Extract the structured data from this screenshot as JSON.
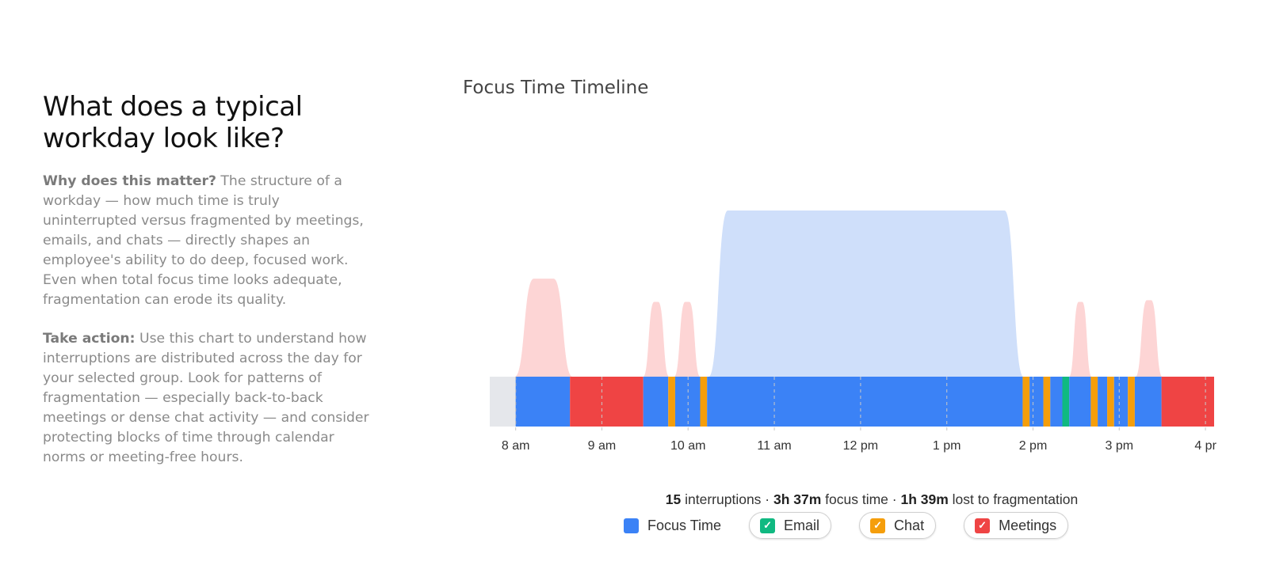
{
  "intro": {
    "heading": "What does a typical workday look like?",
    "why_label": "Why does this matter?",
    "why_text": " The structure of a workday — how much time is truly uninterrupted versus fragmented by meetings, emails, and chats — directly shapes an employee's ability to do deep, focused work. Even when total focus time looks adequate, fragmentation can erode its quality.",
    "action_label": "Take action:",
    "action_text": " Use this chart to understand how interruptions are distributed across the day for your selected group. Look for patterns of fragmentation — especially back-to-back meetings or dense chat activity — and consider protecting blocks of time through calendar norms or meeting-free hours."
  },
  "summary": {
    "interruptions": "15",
    "interruptions_label": " interruptions · ",
    "focus": "3h 37m",
    "focus_label": " focus time · ",
    "lost": "1h 39m",
    "lost_label": " lost to fragmentation"
  },
  "legend": [
    {
      "label": "Focus Time",
      "color": "#3b82f6",
      "checked": false
    },
    {
      "label": "Email",
      "color": "#10b981",
      "checked": true
    },
    {
      "label": "Chat",
      "color": "#f59e0b",
      "checked": true
    },
    {
      "label": "Meetings",
      "color": "#ef4444",
      "checked": true
    }
  ],
  "chart_data": {
    "type": "timeline",
    "title": "Focus Time Timeline",
    "x_unit": "hour of day",
    "xlim": [
      7.7,
      16.1
    ],
    "ticks": [
      {
        "value": 8,
        "label": "8 am"
      },
      {
        "value": 9,
        "label": "9 am"
      },
      {
        "value": 10,
        "label": "10 am"
      },
      {
        "value": 11,
        "label": "11 am"
      },
      {
        "value": 12,
        "label": "12 pm"
      },
      {
        "value": 13,
        "label": "1 pm"
      },
      {
        "value": 14,
        "label": "2 pm"
      },
      {
        "value": 15,
        "label": "3 pm"
      },
      {
        "value": 16,
        "label": "4 pr"
      }
    ],
    "colors": {
      "off": "#e5e7eb",
      "focus": "#3b82f6",
      "email": "#10b981",
      "chat": "#f59e0b",
      "meeting": "#ef4444",
      "focus_wave": "#cfdffa",
      "meeting_wave": "#fdd5d5"
    },
    "segments": [
      {
        "start": 7.7,
        "end": 8.0,
        "type": "off"
      },
      {
        "start": 8.0,
        "end": 8.63,
        "type": "focus"
      },
      {
        "start": 8.63,
        "end": 9.48,
        "type": "meeting"
      },
      {
        "start": 9.48,
        "end": 9.77,
        "type": "focus"
      },
      {
        "start": 9.77,
        "end": 9.85,
        "type": "chat"
      },
      {
        "start": 9.85,
        "end": 10.14,
        "type": "focus"
      },
      {
        "start": 10.14,
        "end": 10.22,
        "type": "chat"
      },
      {
        "start": 10.22,
        "end": 13.88,
        "type": "focus"
      },
      {
        "start": 13.88,
        "end": 13.96,
        "type": "chat"
      },
      {
        "start": 13.96,
        "end": 14.12,
        "type": "focus"
      },
      {
        "start": 14.12,
        "end": 14.2,
        "type": "chat"
      },
      {
        "start": 14.2,
        "end": 14.34,
        "type": "focus"
      },
      {
        "start": 14.34,
        "end": 14.42,
        "type": "email"
      },
      {
        "start": 14.42,
        "end": 14.67,
        "type": "focus"
      },
      {
        "start": 14.67,
        "end": 14.75,
        "type": "chat"
      },
      {
        "start": 14.75,
        "end": 14.86,
        "type": "focus"
      },
      {
        "start": 14.86,
        "end": 14.94,
        "type": "chat"
      },
      {
        "start": 14.94,
        "end": 15.1,
        "type": "focus"
      },
      {
        "start": 15.1,
        "end": 15.18,
        "type": "chat"
      },
      {
        "start": 15.18,
        "end": 15.49,
        "type": "focus"
      },
      {
        "start": 15.49,
        "end": 16.1,
        "type": "meeting"
      }
    ],
    "waves": [
      {
        "start": 7.99,
        "end": 8.66,
        "peak": 0.59,
        "type": "meeting"
      },
      {
        "start": 9.48,
        "end": 9.78,
        "peak": 0.45,
        "type": "meeting"
      },
      {
        "start": 9.84,
        "end": 10.14,
        "peak": 0.45,
        "type": "meeting"
      },
      {
        "start": 10.24,
        "end": 13.89,
        "peak": 1.0,
        "type": "focus"
      },
      {
        "start": 14.42,
        "end": 14.68,
        "peak": 0.45,
        "type": "meeting"
      },
      {
        "start": 15.19,
        "end": 15.5,
        "peak": 0.46,
        "type": "meeting"
      }
    ]
  }
}
